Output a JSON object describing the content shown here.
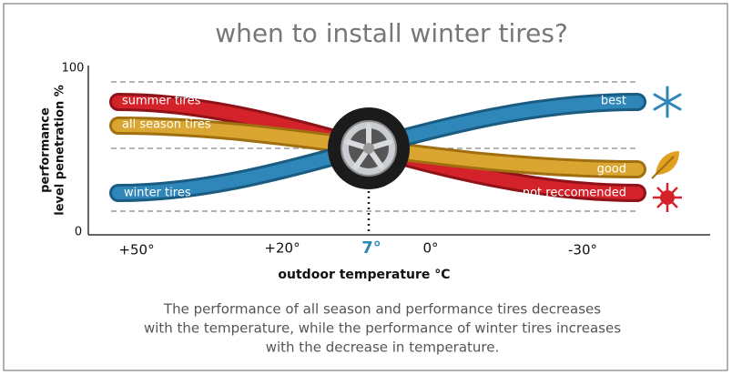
{
  "title": "when to install winter tires?",
  "y_axis": {
    "label_lines": [
      "performance",
      "level penetration %"
    ],
    "max": "100",
    "min": "0"
  },
  "x_axis": {
    "label": "outdoor temperature °C",
    "ticks": [
      "+50°",
      "+20°",
      "7°",
      "0°",
      "-30°"
    ]
  },
  "curves": [
    {
      "label": "summer tires"
    },
    {
      "label": "all season tires"
    },
    {
      "label": "winter tires"
    }
  ],
  "ratings": [
    "best",
    "good",
    "not reccomended"
  ],
  "caption": [
    "The performance of all season and performance tires decreases",
    "with the temperature, while the performance of winter tires increases",
    "with the decrease in temperature."
  ]
}
